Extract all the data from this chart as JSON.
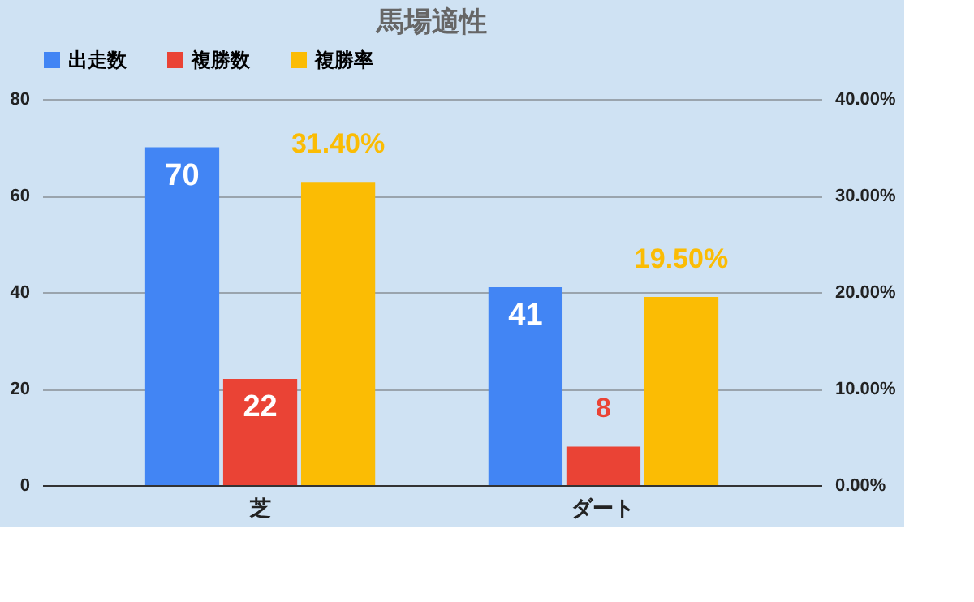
{
  "chart_data": {
    "type": "bar",
    "title": "馬場適性",
    "categories": [
      "芝",
      "ダート"
    ],
    "series": [
      {
        "name": "出走数",
        "color": "#4285f4",
        "values": [
          70,
          41
        ],
        "value_labels": [
          "70",
          "41"
        ]
      },
      {
        "name": "複勝数",
        "color": "#ea4335",
        "values": [
          22,
          8
        ],
        "value_labels": [
          "22",
          "8"
        ]
      },
      {
        "name": "複勝率",
        "color": "#fbbc04",
        "values": [
          31.4,
          19.5
        ],
        "value_labels": [
          "31.40%",
          "19.50%"
        ],
        "axis": "y2"
      }
    ],
    "ylim": [
      0,
      80
    ],
    "yticks": [
      0,
      20,
      40,
      60,
      80
    ],
    "y2lim": [
      0,
      40
    ],
    "y2ticks": [
      {
        "value": 0,
        "label": "0.00%"
      },
      {
        "value": 10,
        "label": "10.00%"
      },
      {
        "value": 20,
        "label": "20.00%"
      },
      {
        "value": 30,
        "label": "30.00%"
      },
      {
        "value": 40,
        "label": "40.00%"
      }
    ],
    "grid": "y",
    "legend": "top"
  }
}
